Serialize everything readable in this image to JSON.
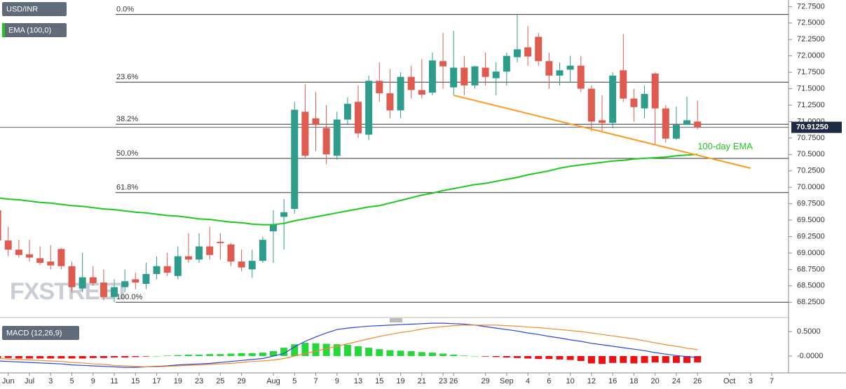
{
  "chart_data": [
    {
      "type": "candlestick",
      "title": "USD/INR",
      "indicator_label": "EMA (100,0)",
      "watermark": "FXSTREET",
      "categories": [
        null,
        "Jun",
        null,
        "Jul",
        null,
        "3",
        null,
        "5",
        null,
        "9",
        null,
        "11",
        null,
        "15",
        null,
        "17",
        null,
        "19",
        null,
        "23",
        null,
        "25",
        null,
        "29",
        null,
        null,
        "Aug",
        null,
        "5",
        null,
        "7",
        null,
        "9",
        null,
        "13",
        null,
        "15",
        null,
        "19",
        null,
        "21",
        null,
        "23",
        "26",
        null,
        null,
        "29",
        null,
        "Sep",
        null,
        "4",
        null,
        "6",
        null,
        "10",
        null,
        "12",
        null,
        "16",
        null,
        "18",
        null,
        "20",
        null,
        "24",
        null,
        "26",
        null,
        null,
        "Oct",
        null,
        "3",
        null,
        "7"
      ],
      "open": [
        69.65,
        69.19,
        69.05,
        68.98,
        68.92,
        68.87,
        69.06,
        68.8,
        68.46,
        68.63,
        68.55,
        68.33,
        68.48,
        68.6,
        68.53,
        68.68,
        68.8,
        68.65,
        68.95,
        68.9,
        69.1,
        69.17,
        69.13,
        68.87,
        68.75,
        68.88,
        69.33,
        69.55,
        69.67,
        71.15,
        71.05,
        70.9,
        70.48,
        71.03,
        71.3,
        70.8,
        71.62,
        71.43,
        71.17,
        71.68,
        71.48,
        71.44,
        71.92,
        71.52,
        71.82,
        71.55,
        71.82,
        71.66,
        71.76,
        71.98,
        72.13,
        72.29,
        71.92,
        71.7,
        71.79,
        71.85,
        71.5,
        71.02,
        70.98,
        71.78,
        71.35,
        71.2,
        71.73,
        71.2,
        70.74,
        70.95,
        71.0,
        null,
        null,
        null,
        null,
        null,
        null,
        null
      ],
      "high": [
        69.7,
        69.4,
        69.2,
        69.2,
        69.1,
        69.12,
        69.08,
        68.87,
        69.0,
        68.8,
        68.75,
        68.6,
        68.75,
        68.7,
        68.85,
        68.95,
        69.0,
        69.1,
        69.3,
        69.3,
        69.4,
        69.3,
        69.15,
        69.05,
        69.05,
        69.25,
        69.65,
        69.82,
        71.3,
        71.57,
        71.45,
        71.25,
        71.15,
        71.37,
        71.55,
        71.7,
        71.9,
        71.8,
        71.75,
        71.85,
        71.95,
        72.05,
        72.35,
        72.38,
        72.0,
        71.85,
        72.05,
        71.9,
        72.05,
        72.63,
        72.45,
        72.35,
        72.05,
        71.9,
        72.0,
        72.0,
        71.55,
        71.4,
        71.75,
        72.33,
        71.5,
        71.55,
        71.75,
        71.25,
        71.23,
        71.38,
        71.32,
        null,
        null,
        null,
        null,
        null,
        null,
        null
      ],
      "low": [
        69.1,
        68.95,
        68.93,
        68.87,
        68.82,
        68.75,
        68.75,
        68.4,
        68.4,
        68.5,
        68.28,
        68.25,
        68.4,
        68.45,
        68.45,
        68.6,
        68.65,
        68.6,
        68.85,
        68.85,
        68.9,
        68.9,
        68.8,
        68.72,
        68.62,
        68.85,
        68.85,
        69.05,
        69.6,
        70.45,
        70.55,
        70.35,
        70.42,
        70.95,
        70.75,
        70.72,
        71.3,
        71.05,
        71.05,
        71.35,
        71.35,
        71.4,
        71.5,
        71.4,
        71.4,
        71.5,
        71.55,
        71.4,
        71.55,
        71.9,
        71.85,
        71.85,
        71.5,
        71.55,
        71.6,
        71.45,
        70.85,
        70.85,
        70.9,
        71.3,
        71.0,
        71.05,
        70.65,
        70.68,
        70.72,
        70.95,
        70.88,
        null,
        null,
        null,
        null,
        null,
        null,
        null
      ],
      "close": [
        69.19,
        69.05,
        68.97,
        68.93,
        68.85,
        68.81,
        68.8,
        68.48,
        68.63,
        68.54,
        68.33,
        68.48,
        68.57,
        68.55,
        68.68,
        68.8,
        68.7,
        68.95,
        68.9,
        69.1,
        68.97,
        69.15,
        68.87,
        68.78,
        68.88,
        69.2,
        69.44,
        69.62,
        71.18,
        70.48,
        70.95,
        70.5,
        71.03,
        71.27,
        70.82,
        71.62,
        71.43,
        71.17,
        71.68,
        71.48,
        71.41,
        71.93,
        71.84,
        71.82,
        71.55,
        71.84,
        71.68,
        71.76,
        72.0,
        72.1,
        71.99,
        71.92,
        71.7,
        71.78,
        71.85,
        71.5,
        71.0,
        70.98,
        71.7,
        71.35,
        71.22,
        71.42,
        71.2,
        70.74,
        70.95,
        71.02,
        70.9125,
        null,
        null,
        null,
        null,
        null,
        null,
        null
      ],
      "up_color": "#2e9c8a",
      "down_color": "#de5b4f",
      "series": [
        {
          "name": "100-day EMA",
          "color": "#1ec81e",
          "values": [
            69.84,
            69.82,
            69.81,
            69.79,
            69.77,
            69.76,
            69.74,
            69.72,
            69.71,
            69.69,
            69.67,
            69.66,
            69.64,
            69.62,
            69.61,
            69.59,
            69.57,
            69.56,
            69.54,
            69.52,
            69.51,
            69.49,
            69.47,
            69.46,
            69.44,
            69.43,
            69.43,
            69.45,
            69.49,
            69.52,
            69.55,
            69.58,
            69.61,
            69.64,
            69.67,
            69.7,
            69.72,
            69.76,
            69.8,
            69.84,
            69.88,
            69.91,
            69.95,
            69.98,
            70.01,
            70.04,
            70.06,
            70.09,
            70.12,
            70.15,
            70.19,
            70.22,
            70.25,
            70.29,
            70.32,
            70.34,
            70.36,
            70.38,
            70.4,
            70.41,
            70.43,
            70.44,
            70.45,
            70.46,
            70.48,
            70.49,
            70.5,
            null,
            null,
            null,
            null,
            null,
            null,
            null
          ]
        }
      ],
      "trendline": {
        "start": 43,
        "end": 71,
        "values": [
          71.4,
          70.29
        ],
        "color": "#ff9a1f"
      },
      "fib_levels": [
        {
          "value": 72.63,
          "label": "0.0%"
        },
        {
          "value": 71.6,
          "label": "23.6%"
        },
        {
          "value": 70.96,
          "label": "38.2%"
        },
        {
          "value": 70.44,
          "label": "50.0%"
        },
        {
          "value": 69.92,
          "label": "61.8%"
        },
        {
          "value": 68.25,
          "label": "100.0%"
        }
      ],
      "current_price": {
        "value": 70.9125,
        "label": "70.91250"
      },
      "ylim": [
        68.05,
        72.85
      ],
      "yticks": [
        {
          "value": 68.25,
          "label": "68.2500"
        },
        {
          "value": 68.5,
          "label": "68.5000"
        },
        {
          "value": 68.75,
          "label": "68.7500"
        },
        {
          "value": 69.0,
          "label": "69.0000"
        },
        {
          "value": 69.25,
          "label": "69.2500"
        },
        {
          "value": 69.5,
          "label": "69.5000"
        },
        {
          "value": 69.75,
          "label": "69.7500"
        },
        {
          "value": 70.0,
          "label": "70.0000"
        },
        {
          "value": 70.25,
          "label": "70.2500"
        },
        {
          "value": 70.5,
          "label": "70.5000"
        },
        {
          "value": 70.75,
          "label": "70.7500"
        },
        {
          "value": 71.0,
          "label": "71.0000"
        },
        {
          "value": 71.25,
          "label": "71.2500"
        },
        {
          "value": 71.5,
          "label": "71.5000"
        },
        {
          "value": 71.75,
          "label": "71.7500"
        },
        {
          "value": 72.0,
          "label": "72.0000"
        },
        {
          "value": 72.25,
          "label": "72.2500"
        },
        {
          "value": 72.5,
          "label": "72.5000"
        },
        {
          "value": 72.75,
          "label": "72.7500"
        }
      ]
    },
    {
      "type": "macd",
      "title": "MACD (12,26,9)",
      "series": [
        {
          "color": "#2b44d8",
          "values": [
            -0.1,
            -0.11,
            -0.12,
            -0.13,
            -0.14,
            -0.15,
            -0.16,
            -0.18,
            -0.19,
            -0.2,
            -0.21,
            -0.22,
            -0.23,
            -0.23,
            -0.22,
            -0.21,
            -0.2,
            -0.18,
            -0.17,
            -0.16,
            -0.15,
            -0.13,
            -0.11,
            -0.09,
            -0.07,
            -0.05,
            0.0,
            0.05,
            0.19,
            0.3,
            0.39,
            0.47,
            0.54,
            0.57,
            0.59,
            0.61,
            0.62,
            0.63,
            0.64,
            0.65,
            0.66,
            0.67,
            0.67,
            0.66,
            0.65,
            0.63,
            0.6,
            0.57,
            0.54,
            0.51,
            0.47,
            0.44,
            0.4,
            0.37,
            0.33,
            0.3,
            0.26,
            0.23,
            0.2,
            0.17,
            0.14,
            0.11,
            0.07,
            0.04,
            0.01,
            -0.01,
            -0.03,
            null,
            null,
            null,
            null,
            null,
            null,
            null
          ]
        },
        {
          "color": "#f08a30",
          "values": [
            -0.05,
            -0.06,
            -0.07,
            -0.08,
            -0.09,
            -0.1,
            -0.11,
            -0.13,
            -0.14,
            -0.16,
            -0.17,
            -0.19,
            -0.2,
            -0.21,
            -0.22,
            -0.22,
            -0.21,
            -0.2,
            -0.19,
            -0.18,
            -0.17,
            -0.16,
            -0.15,
            -0.13,
            -0.11,
            -0.1,
            -0.08,
            -0.05,
            0.0,
            0.05,
            0.1,
            0.15,
            0.2,
            0.25,
            0.3,
            0.35,
            0.4,
            0.44,
            0.48,
            0.51,
            0.55,
            0.58,
            0.6,
            0.62,
            0.63,
            0.63,
            0.63,
            0.63,
            0.62,
            0.61,
            0.59,
            0.58,
            0.56,
            0.54,
            0.52,
            0.5,
            0.47,
            0.44,
            0.41,
            0.38,
            0.35,
            0.31,
            0.27,
            0.23,
            0.2,
            0.16,
            0.13,
            null,
            null,
            null,
            null,
            null,
            null,
            null
          ]
        }
      ],
      "histogram": [
        -0.04,
        -0.04,
        -0.05,
        -0.05,
        -0.05,
        -0.05,
        -0.05,
        -0.05,
        -0.05,
        -0.04,
        -0.04,
        -0.03,
        -0.03,
        -0.02,
        -0.01,
        0.0,
        0.01,
        0.02,
        0.03,
        0.03,
        0.04,
        0.04,
        0.05,
        0.06,
        0.06,
        0.07,
        0.1,
        0.17,
        0.24,
        0.27,
        0.26,
        0.25,
        0.24,
        0.23,
        0.2,
        0.17,
        0.14,
        0.12,
        0.11,
        0.1,
        0.08,
        0.07,
        0.05,
        0.03,
        0.01,
        0.0,
        -0.01,
        -0.02,
        -0.03,
        -0.04,
        -0.05,
        -0.06,
        -0.06,
        -0.07,
        -0.08,
        -0.1,
        -0.15,
        -0.16,
        -0.14,
        -0.14,
        -0.15,
        -0.14,
        -0.13,
        -0.14,
        -0.14,
        -0.14,
        -0.13,
        null,
        null,
        null,
        null,
        null,
        null,
        null
      ],
      "up_color": "#27d63b",
      "down_color": "#ee1111",
      "ylim": [
        -0.3,
        0.7
      ],
      "yticks": [
        {
          "value": 0.5,
          "label": "0.5000"
        },
        {
          "value": 0,
          "label": "-0.0000"
        }
      ]
    }
  ]
}
